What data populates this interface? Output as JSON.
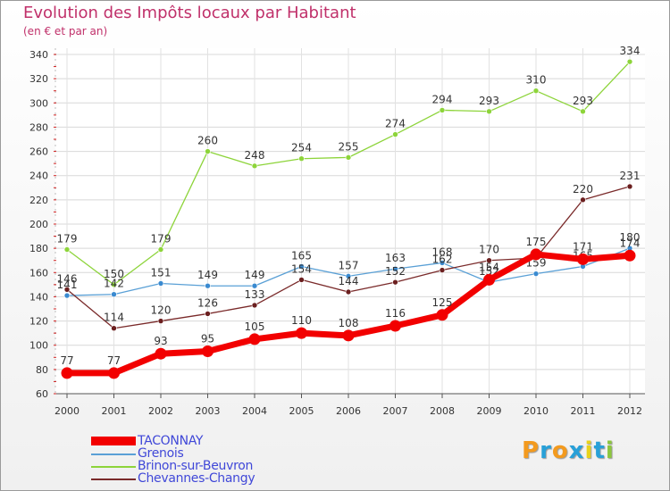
{
  "title": "Evolution des Impôts locaux par Habitant",
  "subtitle": "(en € et par an)",
  "logo": {
    "text": "Proxiti",
    "colors": [
      "#f39a1e",
      "#28a0d8",
      "#f39a1e",
      "#28a0d8",
      "#e8d21a",
      "#28a0d8",
      "#8cc63e"
    ]
  },
  "chart_data": {
    "type": "line",
    "categories": [
      "2000",
      "2001",
      "2002",
      "2003",
      "2004",
      "2005",
      "2006",
      "2007",
      "2008",
      "2009",
      "2010",
      "2011",
      "2012"
    ],
    "ylim": [
      60,
      340
    ],
    "yticks": [
      60,
      80,
      100,
      120,
      140,
      160,
      180,
      200,
      220,
      240,
      260,
      280,
      300,
      320,
      340
    ],
    "grid": true,
    "legend_position": "bottom-left",
    "series": [
      {
        "name": "Brinon-sur-Beuvron",
        "color": "#8dd43a",
        "marker": "#8dd43a",
        "values": [
          179,
          150,
          179,
          260,
          248,
          254,
          255,
          274,
          294,
          293,
          310,
          293,
          334
        ],
        "labels": [
          "179",
          "150",
          "179",
          "260",
          "248",
          "254",
          "255",
          "274",
          "294",
          "293",
          "310",
          "293",
          "334"
        ]
      },
      {
        "name": "Grenois",
        "color": "#5aa0d6",
        "marker": "#3a8ad0",
        "values": [
          141,
          142,
          151,
          149,
          149,
          165,
          157,
          163,
          168,
          152,
          159,
          165,
          180
        ],
        "labels": [
          "141",
          "142",
          "151",
          "149",
          "149",
          "165",
          "157",
          "163",
          "168",
          "152",
          "159",
          "165",
          "180"
        ]
      },
      {
        "name": "Chevannes-Changy",
        "color": "#7a2a2a",
        "marker": "#6b1f1f",
        "values": [
          146,
          114,
          120,
          126,
          133,
          154,
          144,
          152,
          162,
          170,
          172,
          220,
          231
        ],
        "labels": [
          "146",
          "114",
          "120",
          "126",
          "133",
          "154",
          "144",
          "152",
          "162",
          "170",
          "",
          "220",
          "231"
        ]
      },
      {
        "name": "TACONNAY",
        "color": "#f20000",
        "marker": "#f20000",
        "values": [
          77,
          77,
          93,
          95,
          105,
          110,
          108,
          116,
          125,
          154,
          175,
          171,
          174
        ],
        "labels": [
          "77",
          "77",
          "93",
          "95",
          "105",
          "110",
          "108",
          "116",
          "125",
          "154",
          "175",
          "171",
          "174"
        ]
      }
    ],
    "legend_order": [
      "TACONNAY",
      "Grenois",
      "Brinon-sur-Beuvron",
      "Chevannes-Changy"
    ]
  }
}
